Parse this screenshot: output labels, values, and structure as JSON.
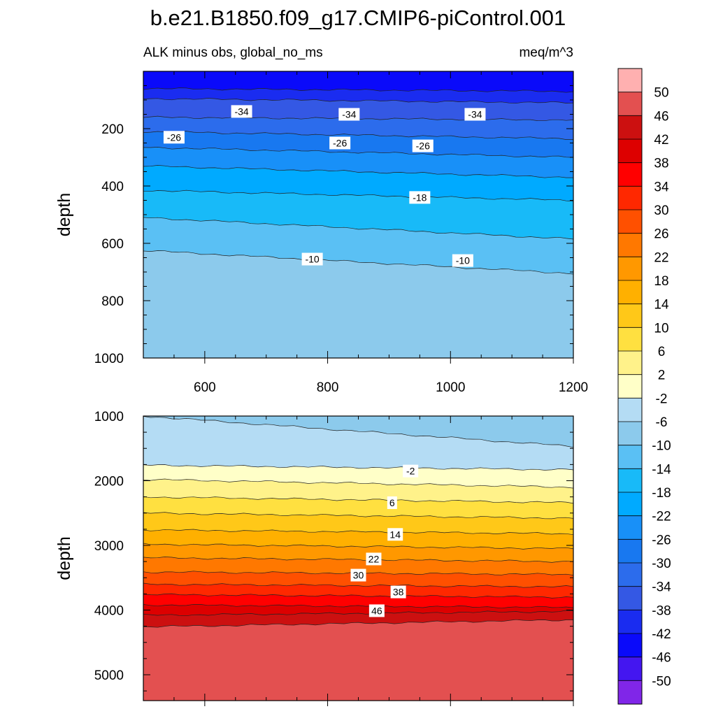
{
  "chart_data": {
    "type": "contour",
    "title": "b.e21.B1850.f09_g17.CMIP6-piControl.001",
    "subtitle_left": "ALK minus obs, global_no_ms",
    "subtitle_right": "meq/m^3",
    "x": {
      "range": [
        500,
        1200
      ],
      "ticks": [
        600,
        800,
        1000,
        1200
      ],
      "tick_labels": [
        "600",
        "800",
        "1000",
        "1200"
      ]
    },
    "panels": [
      {
        "name": "upper",
        "ylabel": "depth",
        "yrange": [
          0,
          1000
        ],
        "yticks": [
          200,
          400,
          600,
          800,
          1000
        ],
        "ytick_labels": [
          "200",
          "400",
          "600",
          "800",
          "1000"
        ],
        "contours": [
          {
            "level": -42,
            "x": [
              500,
              1200
            ],
            "depth": [
              60,
              70
            ]
          },
          {
            "level": -38,
            "x": [
              500,
              1200
            ],
            "depth": [
              95,
              110
            ]
          },
          {
            "level": -34,
            "x": [
              500,
              1200
            ],
            "depth": [
              160,
              170
            ]
          },
          {
            "level": -30,
            "x": [
              500,
              1200
            ],
            "depth": [
              210,
              235
            ]
          },
          {
            "level": -26,
            "x": [
              500,
              1200
            ],
            "depth": [
              265,
              300
            ]
          },
          {
            "level": -22,
            "x": [
              500,
              1200
            ],
            "depth": [
              330,
              370
            ]
          },
          {
            "level": -18,
            "x": [
              500,
              1200
            ],
            "depth": [
              415,
              450
            ]
          },
          {
            "level": -14,
            "x": [
              500,
              1200
            ],
            "depth": [
              510,
              585
            ]
          },
          {
            "level": -10,
            "x": [
              500,
              1200
            ],
            "depth": [
              625,
              705
            ]
          }
        ],
        "contour_labels": [
          {
            "text": "-34",
            "x": 660,
            "depth": 140
          },
          {
            "text": "-34",
            "x": 835,
            "depth": 150
          },
          {
            "text": "-34",
            "x": 1040,
            "depth": 150
          },
          {
            "text": "-26",
            "x": 550,
            "depth": 230
          },
          {
            "text": "-26",
            "x": 820,
            "depth": 250
          },
          {
            "text": "-26",
            "x": 955,
            "depth": 260
          },
          {
            "text": "-18",
            "x": 950,
            "depth": 440
          },
          {
            "text": "-10",
            "x": 775,
            "depth": 655
          },
          {
            "text": "-10",
            "x": 1020,
            "depth": 660
          }
        ]
      },
      {
        "name": "lower",
        "ylabel": "depth",
        "yrange": [
          1000,
          5400
        ],
        "yticks": [
          1000,
          2000,
          3000,
          4000,
          5000
        ],
        "ytick_labels": [
          "1000",
          "2000",
          "3000",
          "4000",
          "5000"
        ],
        "contours": [
          {
            "level": -6,
            "x": [
              500,
              1200
            ],
            "depth": [
              1000,
              1470
            ]
          },
          {
            "level": -2,
            "x": [
              500,
              1200
            ],
            "depth": [
              1760,
              1830
            ]
          },
          {
            "level": 2,
            "x": [
              500,
              1200
            ],
            "depth": [
              1980,
              2100
            ]
          },
          {
            "level": 6,
            "x": [
              500,
              1200
            ],
            "depth": [
              2250,
              2340
            ]
          },
          {
            "level": 10,
            "x": [
              500,
              1200
            ],
            "depth": [
              2500,
              2580
            ]
          },
          {
            "level": 14,
            "x": [
              500,
              1200
            ],
            "depth": [
              2760,
              2820
            ]
          },
          {
            "level": 18,
            "x": [
              500,
              1200
            ],
            "depth": [
              2980,
              3050
            ]
          },
          {
            "level": 22,
            "x": [
              500,
              1200
            ],
            "depth": [
              3190,
              3250
            ]
          },
          {
            "level": 26,
            "x": [
              500,
              1200
            ],
            "depth": [
              3410,
              3450
            ]
          },
          {
            "level": 30,
            "x": [
              500,
              1200
            ],
            "depth": [
              3600,
              3640
            ]
          },
          {
            "level": 34,
            "x": [
              500,
              1200
            ],
            "depth": [
              3760,
              3800
            ]
          },
          {
            "level": 38,
            "x": [
              500,
              1200
            ],
            "depth": [
              3920,
              3960
            ]
          },
          {
            "level": 42,
            "x": [
              500,
              1200
            ],
            "depth": [
              4080,
              4020
            ]
          },
          {
            "level": 46,
            "x": [
              500,
              1200
            ],
            "depth": [
              4260,
              4150
            ]
          }
        ],
        "contour_labels": [
          {
            "text": "-2",
            "x": 935,
            "depth": 1850
          },
          {
            "text": "6",
            "x": 905,
            "depth": 2340
          },
          {
            "text": "14",
            "x": 910,
            "depth": 2830
          },
          {
            "text": "22",
            "x": 875,
            "depth": 3210
          },
          {
            "text": "30",
            "x": 850,
            "depth": 3460
          },
          {
            "text": "38",
            "x": 915,
            "depth": 3720
          },
          {
            "text": "46",
            "x": 880,
            "depth": 4010
          }
        ]
      }
    ],
    "colorbar": {
      "labels": [
        "50",
        "46",
        "42",
        "38",
        "34",
        "30",
        "26",
        "22",
        "18",
        "14",
        "10",
        "6",
        "2",
        "-2",
        "-6",
        "-10",
        "-14",
        "-18",
        "-22",
        "-26",
        "-30",
        "-34",
        "-38",
        "-42",
        "-46",
        "-50"
      ],
      "colors": [
        "#ffb0b0",
        "#e35050",
        "#cc1010",
        "#dd0000",
        "#ff0000",
        "#ff2800",
        "#ff5000",
        "#ff7800",
        "#ff9800",
        "#ffb000",
        "#ffc818",
        "#ffe040",
        "#fff28a",
        "#ffffc8",
        "#b4dcf4",
        "#8ccaec",
        "#5ac0f4",
        "#18baf8",
        "#00aaff",
        "#1890f8",
        "#1878f0",
        "#2c6cec",
        "#3458e4",
        "#1a2cf0",
        "#0a0afa",
        "#4416f0",
        "#8026e8"
      ]
    },
    "grid": false
  }
}
